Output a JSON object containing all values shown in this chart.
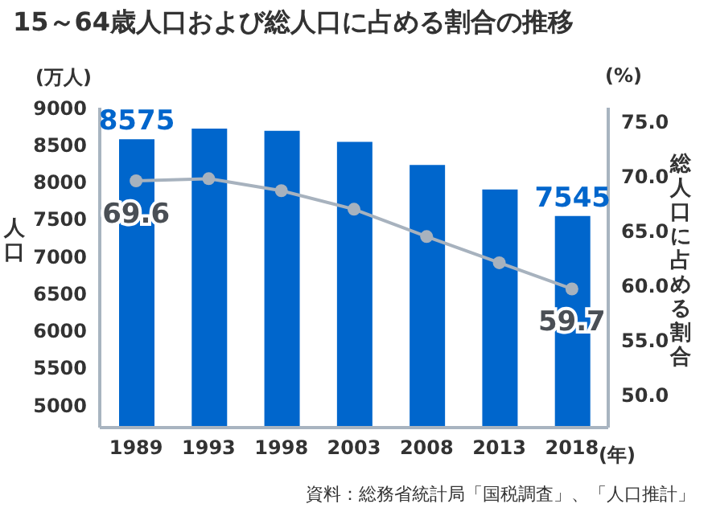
{
  "chart_data": {
    "type": "bar",
    "title": "15～64歳人口および総人口に占める割合の推移",
    "ylabel": "人口",
    "y2label": "総人口に占める割合",
    "annotations": [
      "(万人)",
      "(%)",
      "(年)",
      "資料：総務省統計局「国税調査」、「人口推計」"
    ],
    "categories": [
      "1989",
      "1993",
      "1998",
      "2003",
      "2008",
      "2013",
      "2018"
    ],
    "series": [
      {
        "color": "#0066cc",
        "values": [
          8575,
          8720,
          8690,
          8540,
          8230,
          7900,
          7545
        ],
        "value_labels": [
          "8575",
          null,
          null,
          null,
          null,
          null,
          "7545"
        ]
      },
      {
        "type": "line",
        "axis": "y2",
        "color": "#a7b2be",
        "values": [
          69.6,
          69.8,
          68.7,
          67.0,
          64.5,
          62.1,
          59.7
        ],
        "value_labels": [
          "69.6",
          null,
          null,
          null,
          null,
          null,
          "59.7"
        ]
      }
    ],
    "ylim": [
      4700,
      9000
    ],
    "yticks": [
      5000,
      5500,
      6000,
      6500,
      7000,
      7500,
      8000,
      8500,
      9000
    ],
    "y2lim": [
      47,
      76.3
    ],
    "y2ticks": [
      {
        "value": 50,
        "label": "50.0"
      },
      {
        "value": 55,
        "label": "55.0"
      },
      {
        "value": 60,
        "label": "60.0"
      },
      {
        "value": 65,
        "label": "65.0"
      },
      {
        "value": 70,
        "label": "70.0"
      },
      {
        "value": 75,
        "label": "75.0"
      }
    ],
    "marker": "circle",
    "line_style": "solid"
  }
}
